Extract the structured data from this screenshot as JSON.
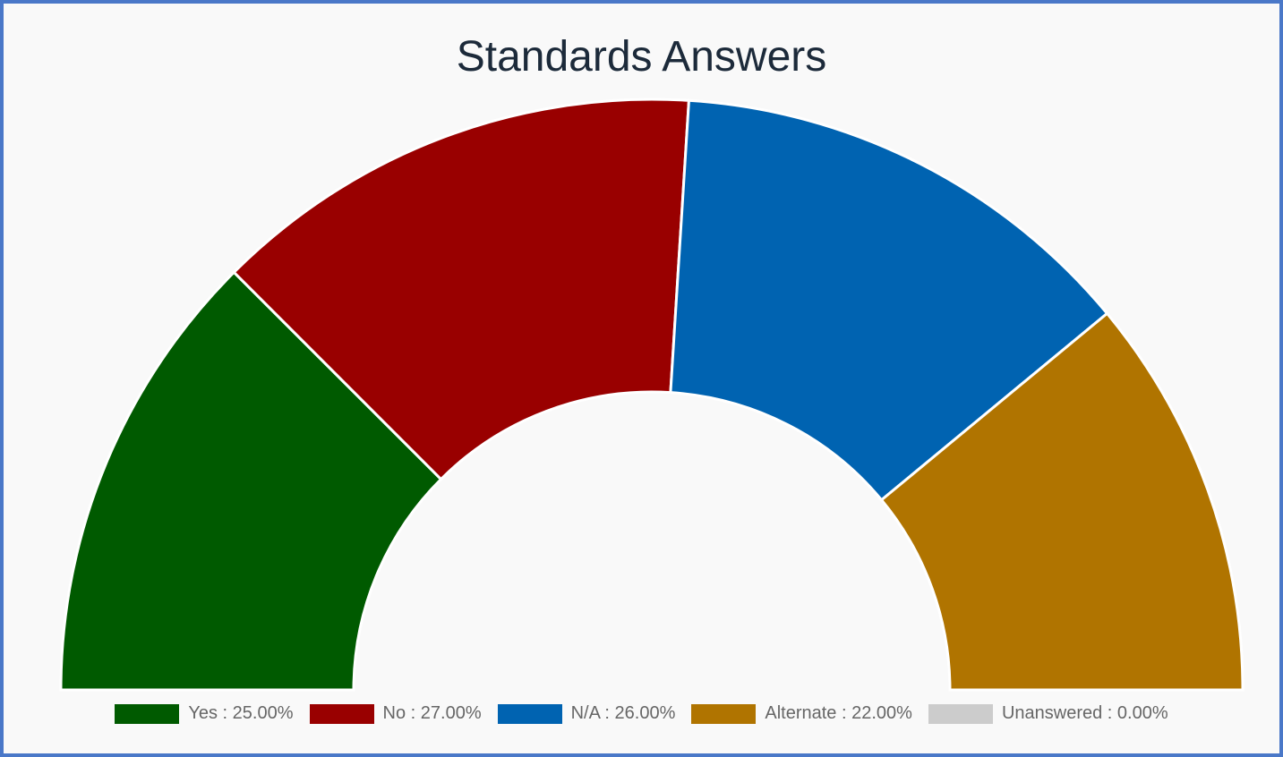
{
  "chart_data": {
    "type": "pie",
    "variant": "half-doughnut",
    "title": "Standards Answers",
    "legend_position": "bottom",
    "series": [
      {
        "name": "Yes",
        "value": 25.0,
        "label": "25.00%",
        "color": "#005a00"
      },
      {
        "name": "No",
        "value": 27.0,
        "label": "27.00%",
        "color": "#990000"
      },
      {
        "name": "N/A",
        "value": 26.0,
        "label": "26.00%",
        "color": "#0063b1"
      },
      {
        "name": "Alternate",
        "value": 22.0,
        "label": "22.00%",
        "color": "#b07400"
      },
      {
        "name": "Unanswered",
        "value": 0.0,
        "label": "0.00%",
        "color": "#cccccc"
      }
    ]
  }
}
